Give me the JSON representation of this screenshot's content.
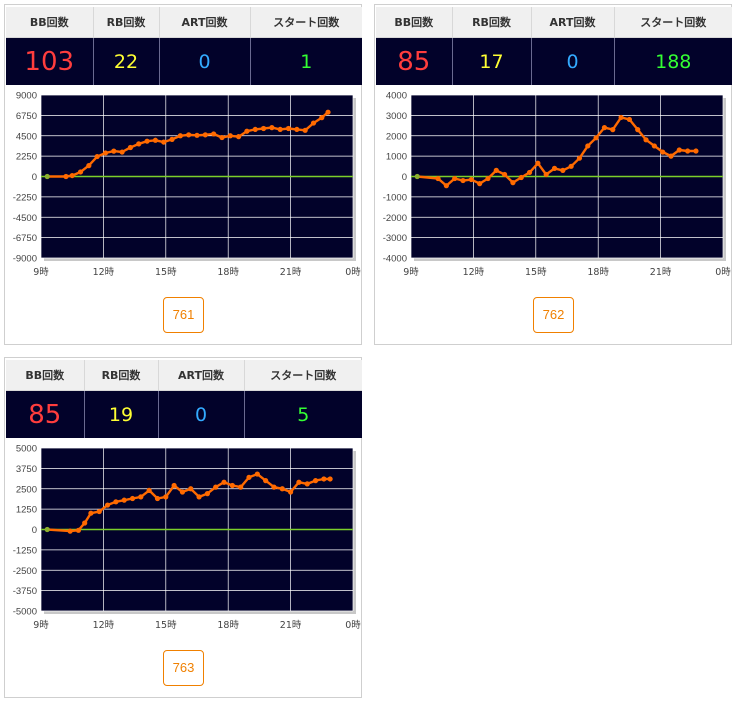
{
  "headers": {
    "bb": "BB回数",
    "rb": "RB回数",
    "art": "ART回数",
    "start": "スタート回数"
  },
  "panels": [
    {
      "stats": {
        "bb": "103",
        "rb": "22",
        "art": "0",
        "start": "1"
      },
      "machine_label": "761",
      "chart_data": {
        "type": "line",
        "x_tick_labels": [
          "9時",
          "12時",
          "15時",
          "18時",
          "21時",
          "0時"
        ],
        "y_tick_labels": [
          "9000",
          "6750",
          "4500",
          "2250",
          "0",
          "-2250",
          "-4500",
          "-6750",
          "-9000"
        ],
        "ylim": [
          -9000,
          9000
        ],
        "xlim": [
          9,
          24
        ],
        "grid": true,
        "zero_line_color": "#7ccf2a",
        "line_color": "#ff6a00",
        "x": [
          9.3,
          10.2,
          10.5,
          10.9,
          11.3,
          11.7,
          12.1,
          12.5,
          12.9,
          13.3,
          13.7,
          14.1,
          14.5,
          14.9,
          15.3,
          15.7,
          16.1,
          16.5,
          16.9,
          17.3,
          17.7,
          18.1,
          18.5,
          18.9,
          19.3,
          19.7,
          20.1,
          20.5,
          20.9,
          21.3,
          21.7,
          22.1,
          22.5,
          22.8
        ],
        "y": [
          0,
          0,
          100,
          500,
          1200,
          2200,
          2600,
          2800,
          2700,
          3200,
          3600,
          3900,
          4000,
          3800,
          4100,
          4500,
          4600,
          4550,
          4600,
          4700,
          4300,
          4500,
          4400,
          5000,
          5200,
          5300,
          5400,
          5200,
          5300,
          5200,
          5100,
          5900,
          6500,
          7100
        ]
      }
    },
    {
      "stats": {
        "bb": "85",
        "rb": "17",
        "art": "0",
        "start": "188"
      },
      "machine_label": "762",
      "chart_data": {
        "type": "line",
        "x_tick_labels": [
          "9時",
          "12時",
          "15時",
          "18時",
          "21時",
          "0時"
        ],
        "y_tick_labels": [
          "4000",
          "3000",
          "2000",
          "1000",
          "0",
          "-1000",
          "-2000",
          "-3000",
          "-4000"
        ],
        "ylim": [
          -4000,
          4000
        ],
        "xlim": [
          9,
          24
        ],
        "grid": true,
        "zero_line_color": "#7ccf2a",
        "line_color": "#ff6a00",
        "x": [
          9.3,
          10.3,
          10.7,
          11.1,
          11.5,
          11.9,
          12.3,
          12.7,
          13.1,
          13.5,
          13.9,
          14.3,
          14.7,
          15.1,
          15.5,
          15.9,
          16.3,
          16.7,
          17.1,
          17.5,
          17.9,
          18.3,
          18.7,
          19.1,
          19.5,
          19.9,
          20.3,
          20.7,
          21.1,
          21.5,
          21.9,
          22.3,
          22.7
        ],
        "y": [
          0,
          -100,
          -450,
          -100,
          -200,
          -150,
          -350,
          -100,
          300,
          100,
          -300,
          -50,
          200,
          650,
          100,
          400,
          300,
          500,
          900,
          1500,
          1900,
          2400,
          2300,
          2900,
          2800,
          2300,
          1800,
          1500,
          1200,
          1000,
          1300,
          1250,
          1250
        ]
      }
    },
    {
      "stats": {
        "bb": "85",
        "rb": "19",
        "art": "0",
        "start": "5"
      },
      "machine_label": "763",
      "chart_data": {
        "type": "line",
        "x_tick_labels": [
          "9時",
          "12時",
          "15時",
          "18時",
          "21時",
          "0時"
        ],
        "y_tick_labels": [
          "5000",
          "3750",
          "2500",
          "1250",
          "0",
          "-1250",
          "-2500",
          "-3750",
          "-5000"
        ],
        "ylim": [
          -5000,
          5000
        ],
        "xlim": [
          9,
          24
        ],
        "grid": true,
        "zero_line_color": "#7ccf2a",
        "line_color": "#ff6a00",
        "x": [
          9.3,
          10.4,
          10.8,
          11.1,
          11.4,
          11.8,
          12.2,
          12.6,
          13.0,
          13.4,
          13.8,
          14.2,
          14.6,
          15.0,
          15.4,
          15.8,
          16.2,
          16.6,
          17.0,
          17.4,
          17.8,
          18.2,
          18.6,
          19.0,
          19.4,
          19.8,
          20.2,
          20.6,
          21.0,
          21.4,
          21.8,
          22.2,
          22.6,
          22.9
        ],
        "y": [
          0,
          -100,
          -50,
          400,
          1000,
          1100,
          1500,
          1700,
          1800,
          1900,
          2000,
          2400,
          1900,
          2000,
          2700,
          2300,
          2500,
          2000,
          2200,
          2600,
          2900,
          2700,
          2600,
          3200,
          3400,
          3000,
          2600,
          2500,
          2300,
          2900,
          2800,
          3000,
          3100,
          3100
        ]
      }
    }
  ]
}
